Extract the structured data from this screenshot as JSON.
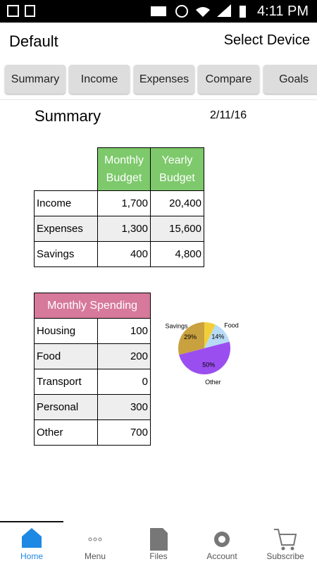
{
  "status_bar": {
    "time": "4:11 PM"
  },
  "app_bar": {
    "title": "Default",
    "action": "Select Device"
  },
  "tabs": [
    "Summary",
    "Income",
    "Expenses",
    "Compare",
    "Goals"
  ],
  "summary": {
    "title": "Summary",
    "date": "2/11/16"
  },
  "budget_table": {
    "header": [
      "Monthly Budget",
      "Yearly Budget"
    ],
    "rows": [
      [
        "Income",
        "1,700",
        "20,400"
      ],
      [
        "Expenses",
        "1,300",
        "15,600"
      ],
      [
        "Savings",
        "400",
        "4,800"
      ]
    ]
  },
  "spending_table": {
    "header": "Monthly Spending",
    "rows": [
      [
        "Housing",
        "100"
      ],
      [
        "Food",
        "200"
      ],
      [
        "Transport",
        "0"
      ],
      [
        "Personal",
        "300"
      ],
      [
        "Other",
        "700"
      ]
    ]
  },
  "chart_data": {
    "type": "pie",
    "categories": [
      null,
      "Food",
      "Other",
      "Savings"
    ],
    "values": [
      7,
      14,
      50,
      29
    ],
    "value_labels": [
      null,
      "14%",
      "50%",
      "29%"
    ],
    "colors": [
      "#f2cf3a",
      "#b7dbf5",
      "#9b4ef0",
      "#c9a13f"
    ]
  },
  "bottom_nav": [
    "Home",
    "Menu",
    "Files",
    "Account",
    "Subscribe"
  ]
}
